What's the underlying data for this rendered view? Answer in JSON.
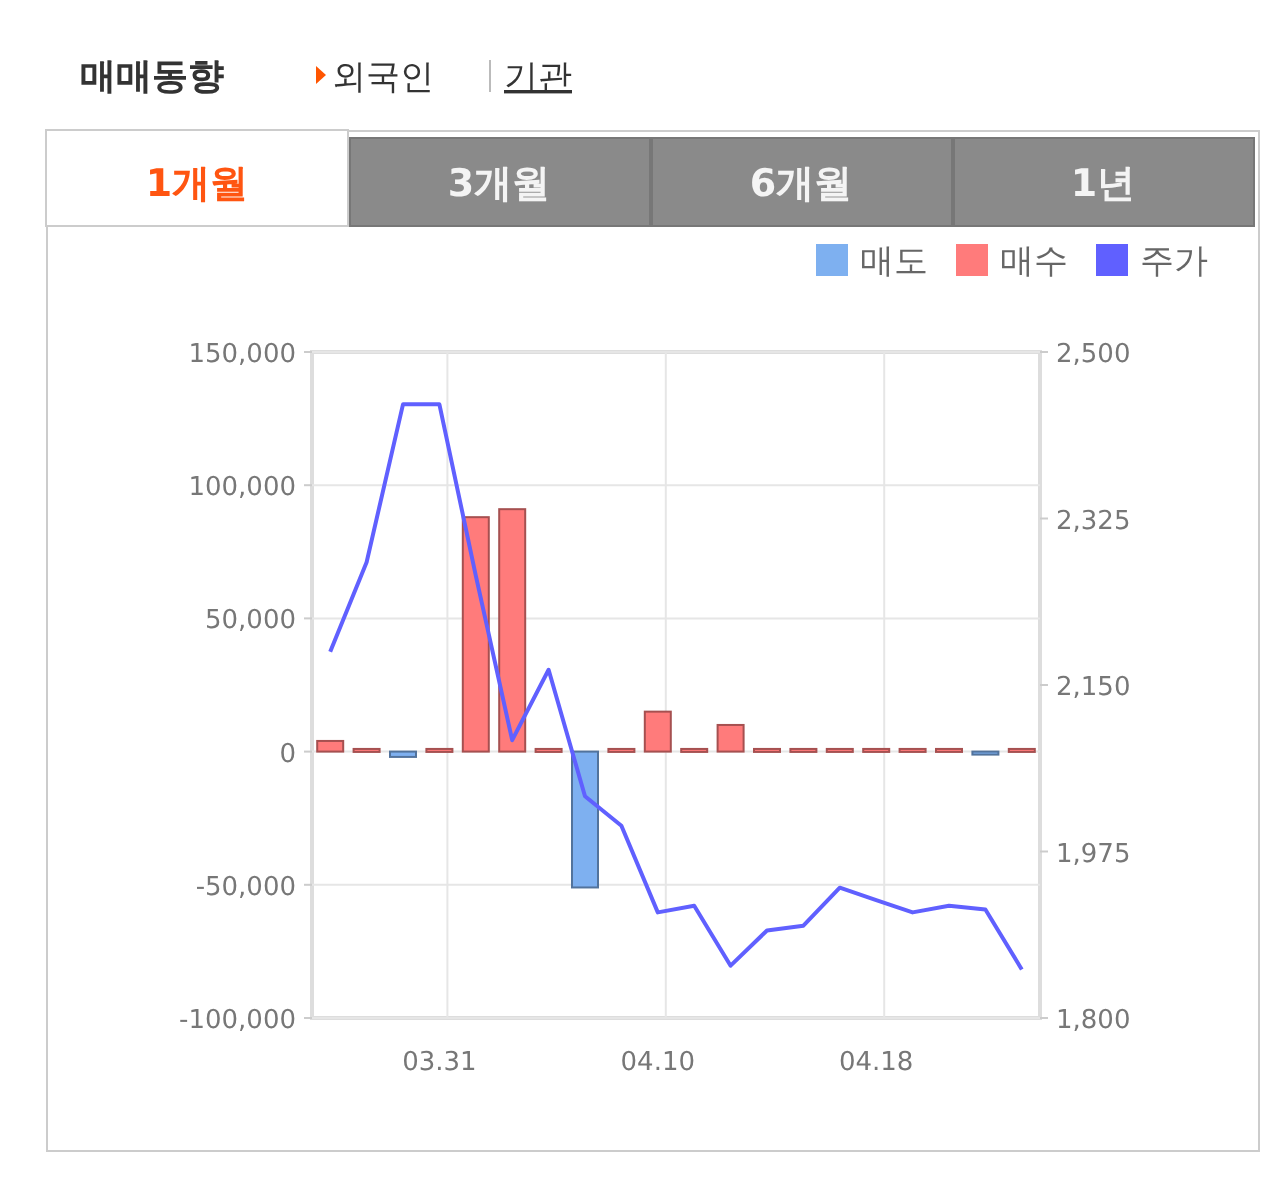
{
  "chart_data": {
    "type": "bar",
    "title": "매매동향",
    "annotations": [
      "외국인",
      "기관",
      "1개월",
      "3개월",
      "6개월",
      "1년"
    ],
    "categories": [
      null,
      null,
      null,
      "03.31",
      null,
      null,
      null,
      null,
      null,
      "04.10",
      null,
      null,
      null,
      null,
      null,
      "04.18",
      null,
      null,
      null,
      null
    ],
    "series": [
      {
        "name": "매도",
        "color": "#7eb0f0",
        "values": [
          null,
          null,
          -2000,
          null,
          null,
          null,
          null,
          -51000,
          null,
          null,
          null,
          null,
          null,
          null,
          null,
          null,
          null,
          null,
          -1000,
          null
        ]
      },
      {
        "name": "매수",
        "color": "#ff7b7b",
        "values": [
          4000,
          1000,
          null,
          1000,
          88000,
          91000,
          1000,
          null,
          1000,
          15000,
          1000,
          10000,
          1000,
          1000,
          1000,
          1000,
          1000,
          1000,
          null,
          1000
        ]
      },
      {
        "name": "주가",
        "color": "#6060ff",
        "type": "line",
        "axis": "y2",
        "values": [
          2185,
          2279,
          2445,
          2445,
          2265,
          2092,
          2166,
          2033,
          2002,
          1911,
          1918,
          1855,
          1892,
          1897,
          1937,
          1924,
          1911,
          1918,
          1914,
          1851
        ]
      }
    ],
    "ylim": [
      -100000,
      150000
    ],
    "yticks": [
      {
        "value": -100000,
        "label": "-100,000"
      },
      {
        "value": -50000,
        "label": "-50,000"
      },
      0,
      {
        "value": 50000,
        "label": "50,000"
      },
      {
        "value": 100000,
        "label": "100,000"
      },
      {
        "value": 150000,
        "label": "150,000"
      }
    ],
    "y2lim": [
      1800,
      2500
    ],
    "y2ticks": [
      {
        "value": 1800,
        "label": "1,800"
      },
      {
        "value": 1975,
        "label": "1,975"
      },
      {
        "value": 2150,
        "label": "2,150"
      },
      {
        "value": 2325,
        "label": "2,325"
      },
      {
        "value": 2500,
        "label": "2,500"
      }
    ],
    "grid": true,
    "legend": "top right"
  }
}
